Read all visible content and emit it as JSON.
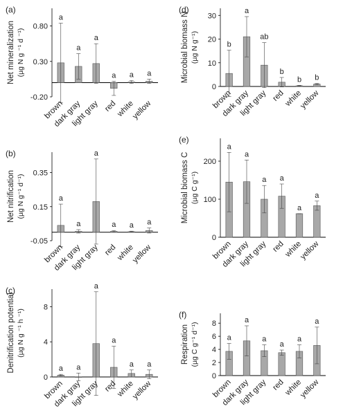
{
  "chart_data": [
    {
      "panel": "(a)",
      "type": "bar",
      "ylabel_line1": "Net mineralization",
      "ylabel_line2": "(µg N g ⁻¹ d ⁻¹)",
      "ylim": [
        -0.2,
        1.05
      ],
      "yticks": [
        -0.2,
        0.3,
        0.8
      ],
      "ytick_labels": [
        "-0.20",
        "0.30",
        "0.80"
      ],
      "categories": [
        "brown",
        "dark gray",
        "light gray",
        "red",
        "white",
        "yellow"
      ],
      "values": [
        0.28,
        0.23,
        0.27,
        -0.08,
        0.01,
        0.02
      ],
      "errors": [
        0.56,
        0.18,
        0.28,
        0.1,
        0.02,
        0.03
      ],
      "letters": [
        "a",
        "a",
        "a",
        "a",
        "a",
        "a"
      ]
    },
    {
      "panel": "(b)",
      "type": "bar",
      "ylabel_line1": "Net nitrification",
      "ylabel_line2": "(µg N g⁻¹ d⁻¹)",
      "ylim": [
        -0.05,
        0.47
      ],
      "yticks": [
        -0.05,
        0.15,
        0.35
      ],
      "ytick_labels": [
        "-0.05",
        "0.15",
        "0.35"
      ],
      "categories": [
        "brown",
        "dark gray",
        "light gray",
        "red",
        "white",
        "yellow"
      ],
      "values": [
        0.04,
        0.005,
        0.18,
        0.005,
        0.003,
        0.01
      ],
      "errors": [
        0.125,
        0.01,
        0.25,
        0.005,
        0.003,
        0.015
      ],
      "letters": [
        "a",
        "a",
        "a",
        "a",
        "a",
        "a"
      ]
    },
    {
      "panel": "(c)",
      "type": "bar",
      "ylabel_line1": "Denitrification potential",
      "ylabel_line2": "(µg N g ⁻¹ h ⁻¹)",
      "ylim": [
        0,
        10
      ],
      "yticks": [
        0,
        4,
        8
      ],
      "ytick_labels": [
        "0",
        "4",
        "8"
      ],
      "categories": [
        "brown",
        "dark gray",
        "light gray",
        "red",
        "white",
        "yellow"
      ],
      "values": [
        0.2,
        0.0,
        3.8,
        1.1,
        0.4,
        0.3
      ],
      "errors": [
        0.1,
        0.45,
        5.9,
        2.4,
        0.4,
        0.5
      ],
      "letters": [
        "a",
        "a",
        "a",
        "a",
        "a",
        "a"
      ]
    },
    {
      "panel": "(d)",
      "type": "bar",
      "ylabel_line1": "Microbial biomass N",
      "ylabel_line2": "(µg N g⁻¹)",
      "ylim": [
        0,
        33
      ],
      "yticks": [
        0,
        10,
        20,
        30
      ],
      "ytick_labels": [
        "0",
        "10",
        "20",
        "30"
      ],
      "categories": [
        "brown",
        "dark gray",
        "light gray",
        "red",
        "white",
        "yellow"
      ],
      "values": [
        5.5,
        21,
        9,
        1.8,
        0.3,
        1.0
      ],
      "errors": [
        9.8,
        8.5,
        9.5,
        2.0,
        0.2,
        0.3
      ],
      "letters": [
        "b",
        "a",
        "ab",
        "b",
        "b",
        "b"
      ]
    },
    {
      "panel": "(e)",
      "type": "bar",
      "ylabel_line1": "Microbial biomass C",
      "ylabel_line2": "(µg C g⁻¹)",
      "ylim": [
        0,
        260
      ],
      "yticks": [
        0,
        100,
        200
      ],
      "ytick_labels": [
        "0",
        "100",
        "200"
      ],
      "categories": [
        "brown",
        "dark gray",
        "light gray",
        "red",
        "white",
        "yellow"
      ],
      "values": [
        145,
        146,
        100,
        108,
        62,
        83
      ],
      "errors": [
        78,
        57,
        36,
        32,
        0,
        12
      ],
      "letters": [
        "a",
        "a",
        "a",
        "a",
        "a",
        "a"
      ]
    },
    {
      "panel": "(f)",
      "type": "bar",
      "ylabel_line1": "Respiration",
      "ylabel_line2": "(µg C g⁻¹ d⁻¹)",
      "ylim": [
        0,
        9.5
      ],
      "yticks": [
        0,
        2,
        4,
        6,
        8
      ],
      "ytick_labels": [
        "0",
        "2",
        "4",
        "6",
        "8"
      ],
      "categories": [
        "brown",
        "dark gray",
        "light gray",
        "red",
        "white",
        "yellow"
      ],
      "values": [
        3.7,
        5.3,
        3.8,
        3.5,
        3.7,
        4.6
      ],
      "errors": [
        1.2,
        2.3,
        0.9,
        0.4,
        1.0,
        2.8
      ],
      "letters": [
        "a",
        "a",
        "a",
        "a",
        "a",
        "a"
      ]
    }
  ],
  "colors": {
    "bar_fill": "#a8a8a8",
    "bar_stroke": "#555555",
    "axis": "#000000",
    "text": "#222222"
  }
}
